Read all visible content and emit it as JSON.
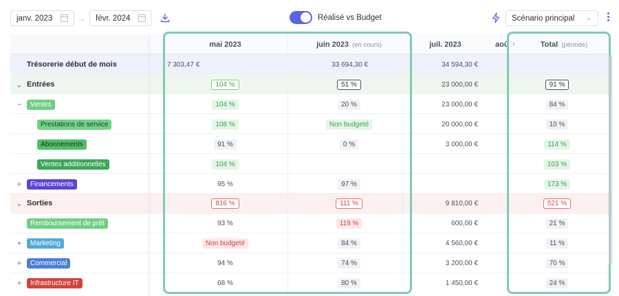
{
  "toolbar": {
    "start_date": "janv. 2023",
    "end_date": "févr. 2024",
    "toggle_label": "Réalisé vs Budget",
    "scenario": "Scénario principal"
  },
  "columns": {
    "c_first": "",
    "c_mai": "mai 2023",
    "c_juin": "juin 2023",
    "c_juin_sub": "(en cours)",
    "c_juil": "juil. 2023",
    "c_aou": "aoû",
    "c_total": "Total",
    "c_total_sub": "(période)"
  },
  "rows": {
    "treso": {
      "label": "Trésorerie début de mois",
      "v0": "7 303,47 €",
      "v1": "33 694,30 €",
      "v2": "34 594,30 €"
    },
    "entrees": {
      "label": "Entrées",
      "mai": "104 %",
      "juin": "51 %",
      "juil": "23 000,00 €",
      "total": "91 %"
    },
    "ventes": {
      "label": "Ventes",
      "mai": "104 %",
      "juin": "20 %",
      "juil": "23 000,00 €",
      "total": "84 %"
    },
    "prestations": {
      "label": "Prestations de service",
      "mai": "108 %",
      "juin": "Non budgeté",
      "juil": "20 000,00 €",
      "total": "10 %"
    },
    "abonnements": {
      "label": "Abonnements",
      "mai": "91 %",
      "juin": "0 %",
      "juil": "3 000,00 €",
      "total": "114 %"
    },
    "ventes_add": {
      "label": "Ventes additionnelles",
      "mai": "104 %",
      "total": "103 %"
    },
    "financements": {
      "label": "Financements",
      "mai": "95 %",
      "juin": "97 %",
      "total": "173 %"
    },
    "sorties": {
      "label": "Sorties",
      "mai": "816 %",
      "juin": "111 %",
      "juil": "9 810,00 €",
      "total": "521 %"
    },
    "remboursement": {
      "label": "Remboursement de prêt",
      "mai": "93 %",
      "juin": "119 %",
      "juil": "600,00 €",
      "total": "21 %"
    },
    "marketing": {
      "label": "Marketing",
      "mai": "Non budgeté",
      "juin": "84 %",
      "juil": "4 560,00 €",
      "total": "11 %"
    },
    "commercial": {
      "label": "Commercial",
      "mai": "94 %",
      "juin": "74 %",
      "juil": "3 200,00 €",
      "total": "70 %"
    },
    "infra": {
      "label": "Infrastructure IT",
      "mai": "68 %",
      "juin": "80 %",
      "juil": "1 450,00 €",
      "total": "24 %"
    }
  },
  "colors": {
    "accent": "#5a63e6",
    "highlight": "#7dcab5",
    "tag_green_light": "#6fcf84",
    "tag_green_mid": "#4fbf6a",
    "tag_green_dark": "#3aa85a",
    "tag_purple": "#5b45d6",
    "tag_blue": "#55a8d8",
    "tag_blue_dark": "#4a7fd6",
    "tag_red": "#d4443b"
  }
}
